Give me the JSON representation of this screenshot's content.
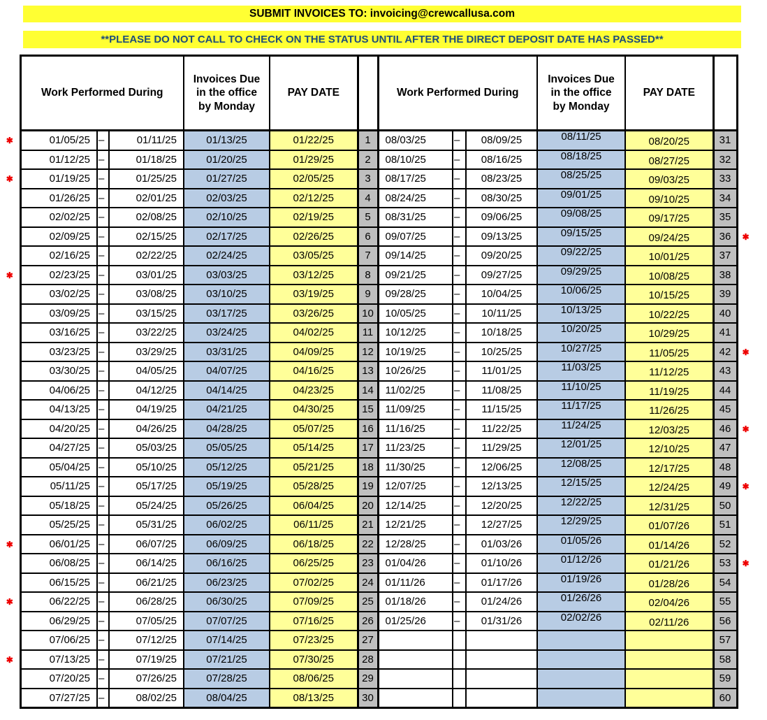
{
  "banners": {
    "submit": "SUBMIT INVOICES TO: invoicing@crewcallusa.com",
    "status": "**PLEASE DO NOT CALL TO CHECK ON THE STATUS UNTIL AFTER THE DIRECT DEPOSIT DATE HAS PASSED**"
  },
  "header": {
    "work": "Work Performed During",
    "invoices_due": "Invoices Due in the office by Monday",
    "pay_date": "PAY DATE"
  },
  "colors": {
    "banner_bg": "#FFFF33",
    "banner_submit_text": "#000000",
    "banner_status_text": "#1F4E79",
    "blue_cell": "#B8CCE4",
    "yellow_cell": "#FFFF99",
    "gray_cell": "#BFBFBF",
    "asterisk": "#EE0000",
    "border": "#000000"
  },
  "left_rows": [
    {
      "start": "01/05/25",
      "dash": "–",
      "end": "01/11/25",
      "due": "01/13/25",
      "pay": "01/22/25",
      "week": "1",
      "mark": "✱"
    },
    {
      "start": "01/12/25",
      "dash": "–",
      "end": "01/18/25",
      "due": "01/20/25",
      "pay": "01/29/25",
      "week": "2",
      "mark": ""
    },
    {
      "start": "01/19/25",
      "dash": "–",
      "end": "01/25/25",
      "due": "01/27/25",
      "pay": "02/05/25",
      "week": "3",
      "mark": "✱"
    },
    {
      "start": "01/26/25",
      "dash": "–",
      "end": "02/01/25",
      "due": "02/03/25",
      "pay": "02/12/25",
      "week": "4",
      "mark": ""
    },
    {
      "start": "02/02/25",
      "dash": "–",
      "end": "02/08/25",
      "due": "02/10/25",
      "pay": "02/19/25",
      "week": "5",
      "mark": ""
    },
    {
      "start": "02/09/25",
      "dash": "–",
      "end": "02/15/25",
      "due": "02/17/25",
      "pay": "02/26/25",
      "week": "6",
      "mark": ""
    },
    {
      "start": "02/16/25",
      "dash": "–",
      "end": "02/22/25",
      "due": "02/24/25",
      "pay": "03/05/25",
      "week": "7",
      "mark": ""
    },
    {
      "start": "02/23/25",
      "dash": "–",
      "end": "03/01/25",
      "due": "03/03/25",
      "pay": "03/12/25",
      "week": "8",
      "mark": "✱"
    },
    {
      "start": "03/02/25",
      "dash": "–",
      "end": "03/08/25",
      "due": "03/10/25",
      "pay": "03/19/25",
      "week": "9",
      "mark": ""
    },
    {
      "start": "03/09/25",
      "dash": "–",
      "end": "03/15/25",
      "due": "03/17/25",
      "pay": "03/26/25",
      "week": "10",
      "mark": ""
    },
    {
      "start": "03/16/25",
      "dash": "–",
      "end": "03/22/25",
      "due": "03/24/25",
      "pay": "04/02/25",
      "week": "11",
      "mark": ""
    },
    {
      "start": "03/23/25",
      "dash": "–",
      "end": "03/29/25",
      "due": "03/31/25",
      "pay": "04/09/25",
      "week": "12",
      "mark": ""
    },
    {
      "start": "03/30/25",
      "dash": "–",
      "end": "04/05/25",
      "due": "04/07/25",
      "pay": "04/16/25",
      "week": "13",
      "mark": ""
    },
    {
      "start": "04/06/25",
      "dash": "–",
      "end": "04/12/25",
      "due": "04/14/25",
      "pay": "04/23/25",
      "week": "14",
      "mark": ""
    },
    {
      "start": "04/13/25",
      "dash": "–",
      "end": "04/19/25",
      "due": "04/21/25",
      "pay": "04/30/25",
      "week": "15",
      "mark": ""
    },
    {
      "start": "04/20/25",
      "dash": "–",
      "end": "04/26/25",
      "due": "04/28/25",
      "pay": "05/07/25",
      "week": "16",
      "mark": ""
    },
    {
      "start": "04/27/25",
      "dash": "–",
      "end": "05/03/25",
      "due": "05/05/25",
      "pay": "05/14/25",
      "week": "17",
      "mark": ""
    },
    {
      "start": "05/04/25",
      "dash": "–",
      "end": "05/10/25",
      "due": "05/12/25",
      "pay": "05/21/25",
      "week": "18",
      "mark": ""
    },
    {
      "start": "05/11/25",
      "dash": "–",
      "end": "05/17/25",
      "due": "05/19/25",
      "pay": "05/28/25",
      "week": "19",
      "mark": ""
    },
    {
      "start": "05/18/25",
      "dash": "–",
      "end": "05/24/25",
      "due": "05/26/25",
      "pay": "06/04/25",
      "week": "20",
      "mark": ""
    },
    {
      "start": "05/25/25",
      "dash": "–",
      "end": "05/31/25",
      "due": "06/02/25",
      "pay": "06/11/25",
      "week": "21",
      "mark": ""
    },
    {
      "start": "06/01/25",
      "dash": "–",
      "end": "06/07/25",
      "due": "06/09/25",
      "pay": "06/18/25",
      "week": "22",
      "mark": "✱"
    },
    {
      "start": "06/08/25",
      "dash": "–",
      "end": "06/14/25",
      "due": "06/16/25",
      "pay": "06/25/25",
      "week": "23",
      "mark": ""
    },
    {
      "start": "06/15/25",
      "dash": "–",
      "end": "06/21/25",
      "due": "06/23/25",
      "pay": "07/02/25",
      "week": "24",
      "mark": ""
    },
    {
      "start": "06/22/25",
      "dash": "–",
      "end": "06/28/25",
      "due": "06/30/25",
      "pay": "07/09/25",
      "week": "25",
      "mark": "✱"
    },
    {
      "start": "06/29/25",
      "dash": "–",
      "end": "07/05/25",
      "due": "07/07/25",
      "pay": "07/16/25",
      "week": "26",
      "mark": ""
    },
    {
      "start": "07/06/25",
      "dash": "–",
      "end": "07/12/25",
      "due": "07/14/25",
      "pay": "07/23/25",
      "week": "27",
      "mark": ""
    },
    {
      "start": "07/13/25",
      "dash": "–",
      "end": "07/19/25",
      "due": "07/21/25",
      "pay": "07/30/25",
      "week": "28",
      "mark": "✱"
    },
    {
      "start": "07/20/25",
      "dash": "–",
      "end": "07/26/25",
      "due": "07/28/25",
      "pay": "08/06/25",
      "week": "29",
      "mark": ""
    },
    {
      "start": "07/27/25",
      "dash": "–",
      "end": "08/02/25",
      "due": "08/04/25",
      "pay": "08/13/25",
      "week": "30",
      "mark": ""
    }
  ],
  "right_rows": [
    {
      "start": "08/03/25",
      "dash": "–",
      "end": "08/09/25",
      "due": "08/11/25",
      "pay": "08/20/25",
      "week": "31",
      "mark": ""
    },
    {
      "start": "08/10/25",
      "dash": "–",
      "end": "08/16/25",
      "due": "08/18/25",
      "pay": "08/27/25",
      "week": "32",
      "mark": ""
    },
    {
      "start": "08/17/25",
      "dash": "–",
      "end": "08/23/25",
      "due": "08/25/25",
      "pay": "09/03/25",
      "week": "33",
      "mark": ""
    },
    {
      "start": "08/24/25",
      "dash": "–",
      "end": "08/30/25",
      "due": "09/01/25",
      "pay": "09/10/25",
      "week": "34",
      "mark": ""
    },
    {
      "start": "08/31/25",
      "dash": "–",
      "end": "09/06/25",
      "due": "09/08/25",
      "pay": "09/17/25",
      "week": "35",
      "mark": ""
    },
    {
      "start": "09/07/25",
      "dash": "–",
      "end": "09/13/25",
      "due": "09/15/25",
      "pay": "09/24/25",
      "week": "36",
      "mark": "✱"
    },
    {
      "start": "09/14/25",
      "dash": "–",
      "end": "09/20/25",
      "due": "09/22/25",
      "pay": "10/01/25",
      "week": "37",
      "mark": ""
    },
    {
      "start": "09/21/25",
      "dash": "–",
      "end": "09/27/25",
      "due": "09/29/25",
      "pay": "10/08/25",
      "week": "38",
      "mark": ""
    },
    {
      "start": "09/28/25",
      "dash": "–",
      "end": "10/04/25",
      "due": "10/06/25",
      "pay": "10/15/25",
      "week": "39",
      "mark": ""
    },
    {
      "start": "10/05/25",
      "dash": "–",
      "end": "10/11/25",
      "due": "10/13/25",
      "pay": "10/22/25",
      "week": "40",
      "mark": ""
    },
    {
      "start": "10/12/25",
      "dash": "–",
      "end": "10/18/25",
      "due": "10/20/25",
      "pay": "10/29/25",
      "week": "41",
      "mark": ""
    },
    {
      "start": "10/19/25",
      "dash": "–",
      "end": "10/25/25",
      "due": "10/27/25",
      "pay": "11/05/25",
      "week": "42",
      "mark": "✱"
    },
    {
      "start": "10/26/25",
      "dash": "–",
      "end": "11/01/25",
      "due": "11/03/25",
      "pay": "11/12/25",
      "week": "43",
      "mark": ""
    },
    {
      "start": "11/02/25",
      "dash": "–",
      "end": "11/08/25",
      "due": "11/10/25",
      "pay": "11/19/25",
      "week": "44",
      "mark": ""
    },
    {
      "start": "11/09/25",
      "dash": "–",
      "end": "11/15/25",
      "due": "11/17/25",
      "pay": "11/26/25",
      "week": "45",
      "mark": ""
    },
    {
      "start": "11/16/25",
      "dash": "–",
      "end": "11/22/25",
      "due": "11/24/25",
      "pay": "12/03/25",
      "week": "46",
      "mark": "✱"
    },
    {
      "start": "11/23/25",
      "dash": "–",
      "end": "11/29/25",
      "due": "12/01/25",
      "pay": "12/10/25",
      "week": "47",
      "mark": ""
    },
    {
      "start": "11/30/25",
      "dash": "–",
      "end": "12/06/25",
      "due": "12/08/25",
      "pay": "12/17/25",
      "week": "48",
      "mark": ""
    },
    {
      "start": "12/07/25",
      "dash": "–",
      "end": "12/13/25",
      "due": "12/15/25",
      "pay": "12/24/25",
      "week": "49",
      "mark": "✱"
    },
    {
      "start": "12/14/25",
      "dash": "–",
      "end": "12/20/25",
      "due": "12/22/25",
      "pay": "12/31/25",
      "week": "50",
      "mark": ""
    },
    {
      "start": "12/21/25",
      "dash": "–",
      "end": "12/27/25",
      "due": "12/29/25",
      "pay": "01/07/26",
      "week": "51",
      "mark": ""
    },
    {
      "start": "12/28/25",
      "dash": "–",
      "end": "01/03/26",
      "due": "01/05/26",
      "pay": "01/14/26",
      "week": "52",
      "mark": ""
    },
    {
      "start": "01/04/26",
      "dash": "–",
      "end": "01/10/26",
      "due": "01/12/26",
      "pay": "01/21/26",
      "week": "53",
      "mark": "✱"
    },
    {
      "start": "01/11/26",
      "dash": "–",
      "end": "01/17/26",
      "due": "01/19/26",
      "pay": "01/28/26",
      "week": "54",
      "mark": ""
    },
    {
      "start": "01/18/26",
      "dash": "–",
      "end": "01/24/26",
      "due": "01/26/26",
      "pay": "02/04/26",
      "week": "55",
      "mark": ""
    },
    {
      "start": "01/25/26",
      "dash": "–",
      "end": "01/31/26",
      "due": "02/02/26",
      "pay": "02/11/26",
      "week": "56",
      "mark": ""
    },
    {
      "start": "",
      "dash": "",
      "end": "",
      "due": "",
      "pay": "",
      "week": "57",
      "mark": ""
    },
    {
      "start": "",
      "dash": "",
      "end": "",
      "due": "",
      "pay": "",
      "week": "58",
      "mark": ""
    },
    {
      "start": "",
      "dash": "",
      "end": "",
      "due": "",
      "pay": "",
      "week": "59",
      "mark": ""
    },
    {
      "start": "",
      "dash": "",
      "end": "",
      "due": "",
      "pay": "",
      "week": "60",
      "mark": ""
    }
  ]
}
